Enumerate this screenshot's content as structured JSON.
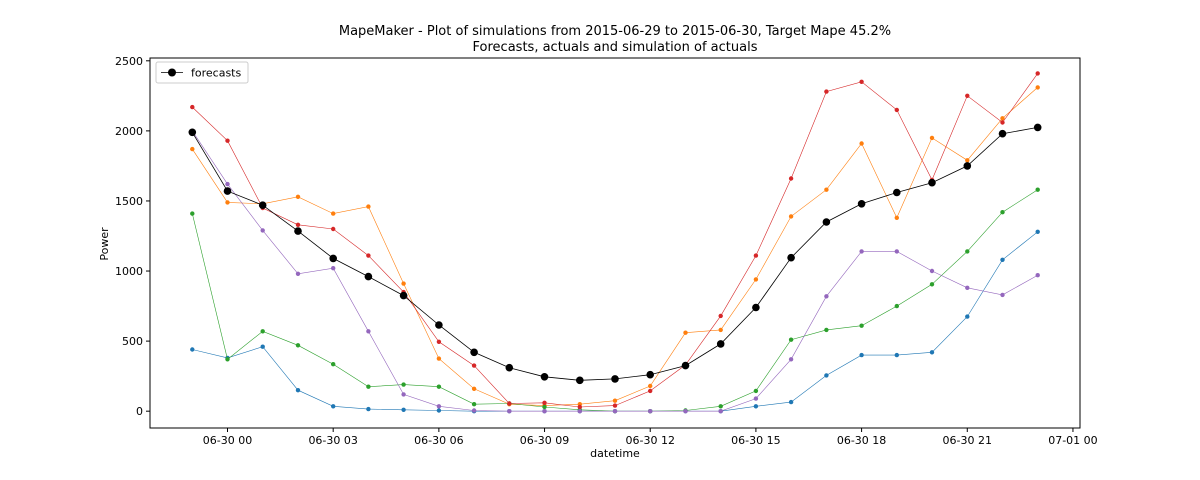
{
  "chart_data": {
    "type": "line",
    "title": "MapeMaker - Plot of simulations from 2015-06-29 to 2015-06-30, Target Mape 45.2%",
    "subtitle": "Forecasts, actuals and simulation of actuals",
    "xlabel": "datetime",
    "ylabel": "Power",
    "x_hours": [
      -1,
      0,
      1,
      2,
      3,
      4,
      5,
      6,
      7,
      8,
      9,
      10,
      11,
      12,
      13,
      14,
      15,
      16,
      17,
      18,
      19,
      20,
      21,
      22,
      23
    ],
    "xlim": [
      -2.2,
      24.2
    ],
    "ylim": [
      -120,
      2520
    ],
    "x_ticks": [
      {
        "value": 0,
        "label": "06-30 00"
      },
      {
        "value": 3,
        "label": "06-30 03"
      },
      {
        "value": 6,
        "label": "06-30 06"
      },
      {
        "value": 9,
        "label": "06-30 09"
      },
      {
        "value": 12,
        "label": "06-30 12"
      },
      {
        "value": 15,
        "label": "06-30 15"
      },
      {
        "value": 18,
        "label": "06-30 18"
      },
      {
        "value": 21,
        "label": "06-30 21"
      },
      {
        "value": 24,
        "label": "07-01 00"
      }
    ],
    "y_ticks": [
      {
        "value": 0,
        "label": "0"
      },
      {
        "value": 500,
        "label": "500"
      },
      {
        "value": 1000,
        "label": "1000"
      },
      {
        "value": 1500,
        "label": "1500"
      },
      {
        "value": 2000,
        "label": "2000"
      },
      {
        "value": 2500,
        "label": "2500"
      }
    ],
    "grid": false,
    "legend_position": "top-left",
    "legend_entries": [
      "forecasts"
    ],
    "series": [
      {
        "color": "#1f77b4",
        "values": [
          440,
          380,
          460,
          150,
          35,
          15,
          10,
          5,
          0,
          0,
          0,
          0,
          0,
          0,
          0,
          0,
          35,
          65,
          255,
          400,
          400,
          420,
          675,
          1080,
          1280
        ]
      },
      {
        "color": "#ff7f0e",
        "values": [
          1870,
          1490,
          1480,
          1530,
          1410,
          1460,
          910,
          375,
          160,
          50,
          40,
          50,
          75,
          180,
          560,
          580,
          940,
          1390,
          1580,
          1910,
          1380,
          1950,
          1790,
          2090,
          2310
        ]
      },
      {
        "color": "#2ca02c",
        "values": [
          1410,
          370,
          570,
          470,
          335,
          175,
          190,
          175,
          50,
          55,
          30,
          10,
          0,
          0,
          5,
          35,
          145,
          510,
          580,
          610,
          750,
          905,
          1140,
          1420,
          1580
        ]
      },
      {
        "color": "#d62728",
        "values": [
          2170,
          1930,
          1450,
          1330,
          1300,
          1110,
          850,
          495,
          325,
          55,
          60,
          30,
          40,
          145,
          330,
          680,
          1110,
          1660,
          2280,
          2350,
          2150,
          1650,
          2250,
          2060,
          2410
        ]
      },
      {
        "color": "#9467bd",
        "values": [
          2000,
          1620,
          1290,
          980,
          1020,
          570,
          120,
          35,
          5,
          0,
          0,
          0,
          0,
          0,
          0,
          0,
          90,
          370,
          820,
          1140,
          1140,
          1000,
          880,
          830,
          970
        ]
      },
      {
        "name": "forecasts",
        "color": "#000000",
        "values": [
          1990,
          1570,
          1470,
          1285,
          1090,
          960,
          825,
          615,
          420,
          310,
          245,
          220,
          230,
          260,
          325,
          480,
          740,
          1095,
          1350,
          1480,
          1560,
          1630,
          1750,
          1980,
          2025
        ]
      }
    ]
  }
}
